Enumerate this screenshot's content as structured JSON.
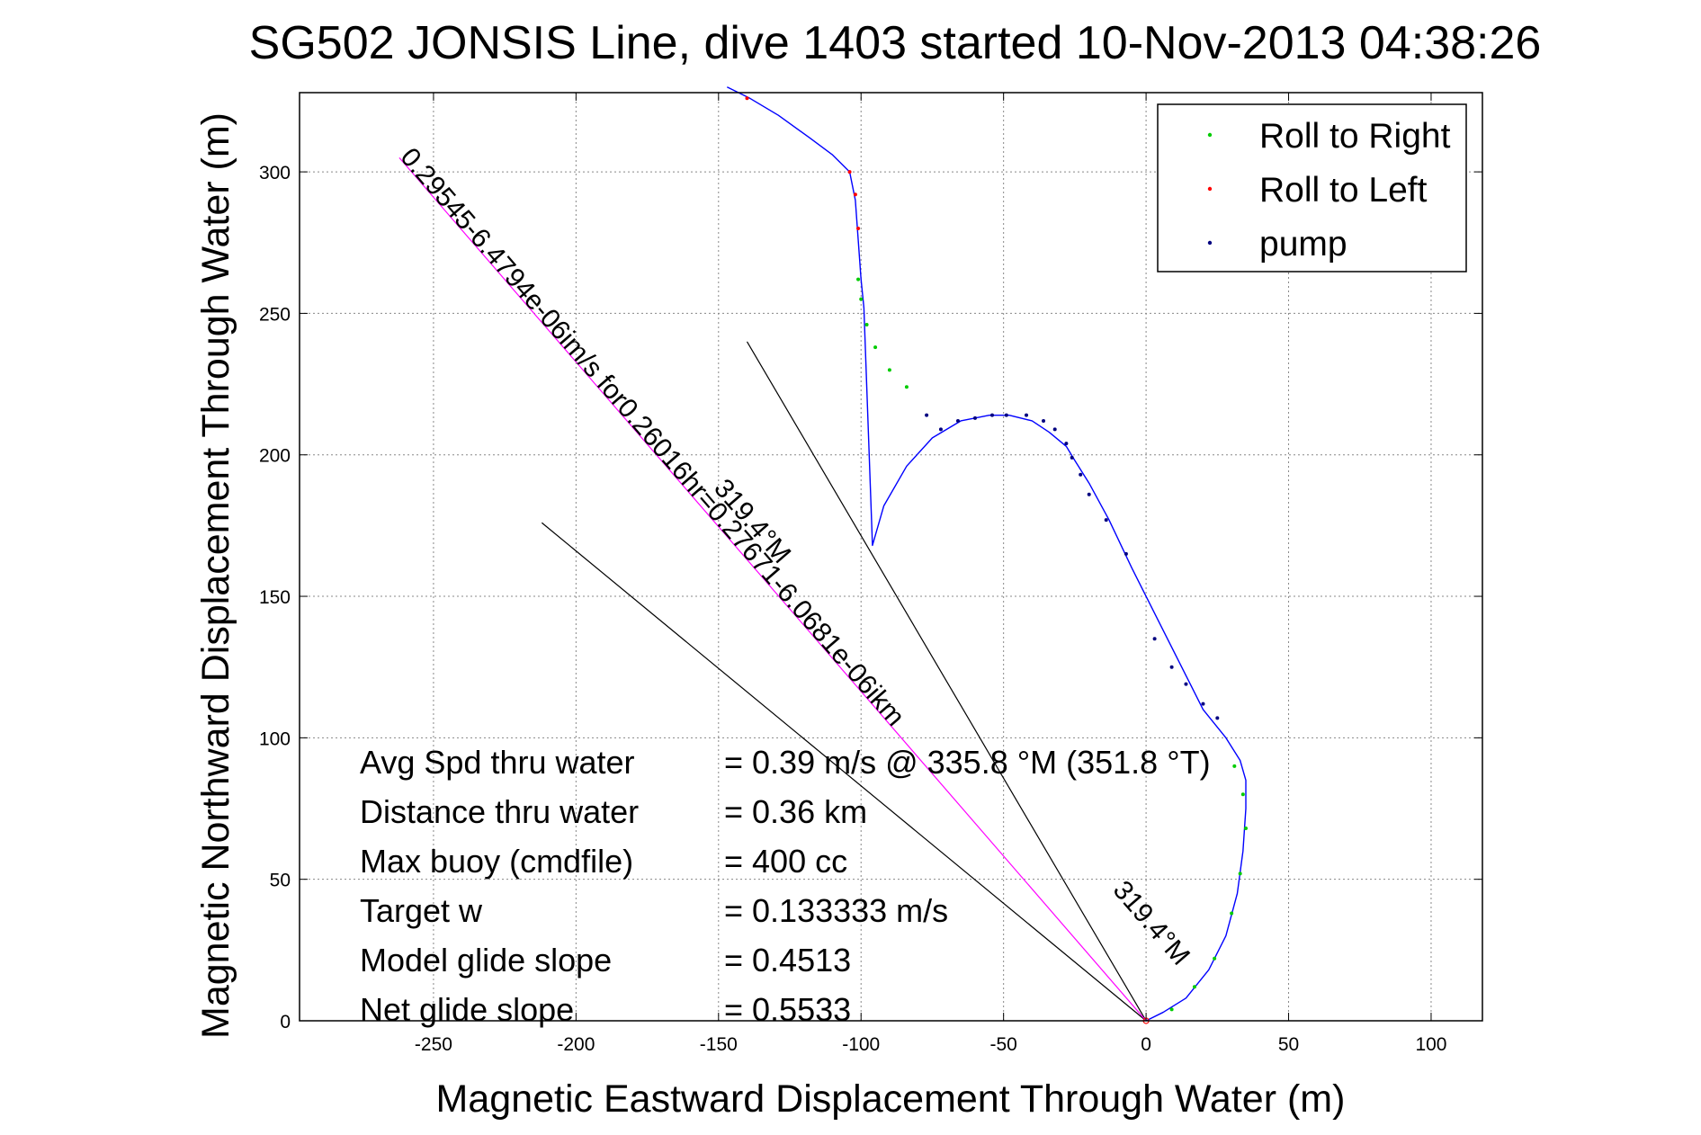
{
  "chart_data": {
    "type": "line",
    "title": "SG502 JONSIS Line, dive 1403 started 10-Nov-2013 04:38:26",
    "xlabel": "Magnetic Eastward Displacement Through Water (m)",
    "ylabel": "Magnetic Northward Displacement Through Water (m)",
    "xlim": [
      -297,
      118
    ],
    "ylim": [
      0,
      328
    ],
    "xticks": [
      -250,
      -200,
      -150,
      -100,
      -50,
      0,
      50,
      100
    ],
    "yticks": [
      0,
      50,
      100,
      150,
      200,
      250,
      300
    ],
    "grid": true,
    "legend_position": "top-right",
    "colors": {
      "track": "#0000ff",
      "roll_right": "#00cc00",
      "roll_left": "#ff0000",
      "pump": "#000080",
      "ref_lines": "#000000",
      "current_line": "#ff00ff"
    },
    "legend": [
      {
        "label": "Roll to Right",
        "color": "#00cc00"
      },
      {
        "label": "Roll to Left",
        "color": "#ff0000"
      },
      {
        "label": "pump",
        "color": "#000080"
      }
    ],
    "series": [
      {
        "name": "track",
        "x": [
          0,
          6,
          14,
          22,
          28,
          32,
          34,
          35,
          35,
          33,
          28,
          20,
          14,
          5,
          -5,
          -13,
          -20,
          -25,
          -28,
          -34,
          -40,
          -48,
          -55,
          -65,
          -75,
          -84,
          -92,
          -96,
          -99,
          -100,
          -101,
          -102,
          -104,
          -110,
          -118,
          -129,
          -139,
          -147
        ],
        "y": [
          0,
          3,
          8,
          18,
          30,
          45,
          60,
          75,
          85,
          92,
          100,
          110,
          122,
          140,
          160,
          177,
          190,
          198,
          203,
          208,
          212,
          214,
          214,
          212,
          206,
          196,
          182,
          168,
          252,
          262,
          276,
          290,
          300,
          306,
          312,
          320,
          326,
          330
        ]
      }
    ],
    "roll_right_points": {
      "x": [
        9,
        17,
        24,
        30,
        33,
        35,
        34,
        31,
        -84,
        -90,
        -95,
        -98,
        -100,
        -101
      ],
      "y": [
        4,
        12,
        22,
        38,
        52,
        68,
        80,
        90,
        224,
        230,
        238,
        246,
        255,
        262
      ]
    },
    "roll_left_points": {
      "x": [
        -101,
        -102,
        -104,
        -140
      ],
      "y": [
        280,
        292,
        300,
        326
      ]
    },
    "pump_points": {
      "x": [
        25,
        20,
        14,
        9,
        3,
        -7,
        -14,
        -20,
        -23,
        -26,
        -28,
        -32,
        -36,
        -42,
        -49,
        -54,
        -60,
        -66,
        -72,
        -77
      ],
      "y": [
        107,
        112,
        119,
        125,
        135,
        165,
        177,
        186,
        193,
        199,
        204,
        209,
        212,
        214,
        214,
        214,
        213,
        212,
        209,
        214
      ]
    },
    "reference_lines": [
      {
        "x": [
          0,
          -140
        ],
        "y": [
          0,
          240
        ]
      },
      {
        "x": [
          0,
          -212
        ],
        "y": [
          0,
          176
        ]
      },
      {
        "x": [
          0,
          -262
        ],
        "y": [
          0,
          305
        ]
      }
    ],
    "rotated_labels": [
      {
        "text": "0.29545-6.4794e-06im/s for0.26016hr=0.27671-6.0681e-06ikm",
        "x": -262,
        "y": 305
      },
      {
        "text": "319.4°M",
        "x": -152,
        "y": 188
      },
      {
        "text": "319.4°M",
        "x": -12,
        "y": 46
      }
    ],
    "stats": [
      {
        "label": "Avg Spd thru water",
        "value": "=  0.39 m/s @ 335.8 °M (351.8 °T)"
      },
      {
        "label": "Distance thru water",
        "value": "=  0.36 km"
      },
      {
        "label": "Max buoy (cmdfile)",
        "value": "= 400 cc"
      },
      {
        "label": "Target w",
        "value": "= 0.133333 m/s"
      },
      {
        "label": "Model glide slope",
        "value": "= 0.4513"
      },
      {
        "label": "Net glide slope",
        "value": "= 0.5533"
      }
    ]
  }
}
